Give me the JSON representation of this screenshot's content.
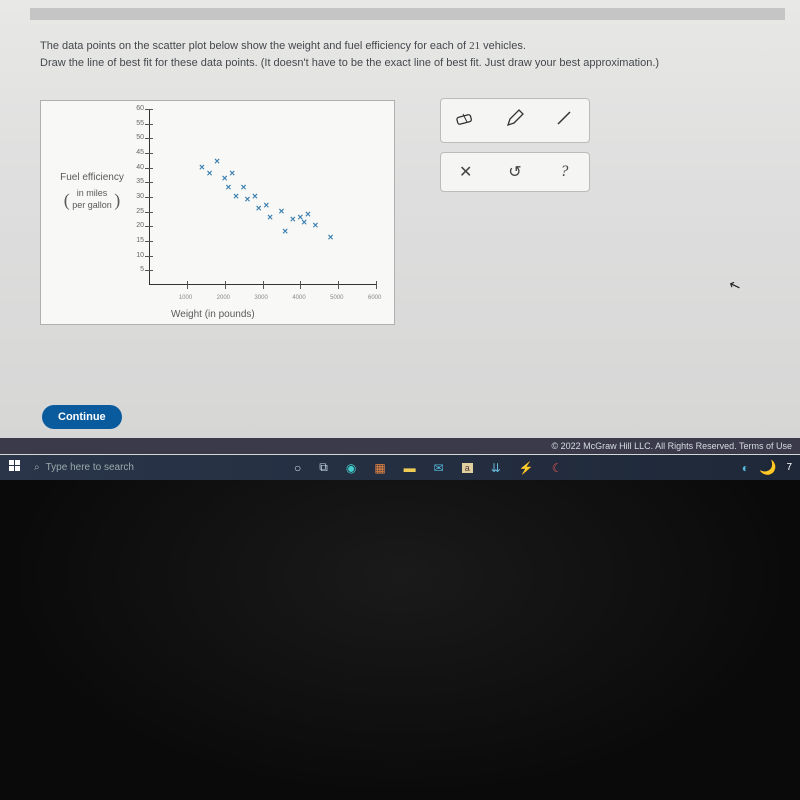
{
  "instructions": {
    "line1_a": "The data points on the scatter plot below show the weight and fuel efficiency for each of ",
    "line1_b": " vehicles.",
    "count": "21",
    "line2": "Draw the line of best fit for these data points. (It doesn't have to be the exact line of best fit. Just draw your best approximation.)"
  },
  "chart": {
    "type": "scatter",
    "y_label_top": "Fuel efficiency",
    "y_label_sub1": "in miles",
    "y_label_sub2": "per gallon",
    "x_label": "Weight (in pounds)",
    "y_ticks": [
      5,
      10,
      15,
      20,
      25,
      30,
      35,
      40,
      45,
      50,
      55,
      60
    ],
    "x_ticks": [
      "1000",
      "2000",
      "3000",
      "4000",
      "5000",
      "6000"
    ],
    "ylim": [
      0,
      60
    ],
    "xlim": [
      0,
      6000
    ],
    "point_color": "#3a7fb0",
    "points": [
      {
        "x": 1400,
        "y": 40
      },
      {
        "x": 1600,
        "y": 38
      },
      {
        "x": 1800,
        "y": 42
      },
      {
        "x": 2000,
        "y": 36
      },
      {
        "x": 2100,
        "y": 33
      },
      {
        "x": 2200,
        "y": 38
      },
      {
        "x": 2300,
        "y": 30
      },
      {
        "x": 2500,
        "y": 33
      },
      {
        "x": 2600,
        "y": 29
      },
      {
        "x": 2800,
        "y": 30
      },
      {
        "x": 2900,
        "y": 26
      },
      {
        "x": 3100,
        "y": 27
      },
      {
        "x": 3200,
        "y": 23
      },
      {
        "x": 3500,
        "y": 25
      },
      {
        "x": 3600,
        "y": 18
      },
      {
        "x": 3800,
        "y": 22
      },
      {
        "x": 4000,
        "y": 23
      },
      {
        "x": 4100,
        "y": 21
      },
      {
        "x": 4200,
        "y": 24
      },
      {
        "x": 4400,
        "y": 20
      },
      {
        "x": 4800,
        "y": 16
      }
    ]
  },
  "tools": {
    "eraser": "eraser-icon",
    "pencil": "pencil-icon",
    "line": "line-icon",
    "clear": "✕",
    "undo": "↺",
    "help": "?"
  },
  "buttons": {
    "continue": "Continue"
  },
  "footer": {
    "copyright": "© 2022 McGraw Hill LLC. All Rights Reserved.   Terms of Use"
  },
  "taskbar": {
    "search_placeholder": "Type here to search",
    "right_num": "7"
  }
}
